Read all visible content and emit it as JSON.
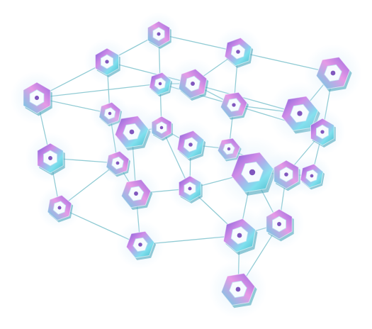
{
  "scene": {
    "subject": "lattice-network",
    "node_shape": "hexagonal-nut",
    "colors": {
      "background": "#ffffff",
      "edge": "#8cc9d2",
      "node_gradient": [
        "#7b5cd6",
        "#d08ce8",
        "#7fe0ee",
        "#49b8c9"
      ],
      "glow": "#bfe3f7"
    }
  }
}
